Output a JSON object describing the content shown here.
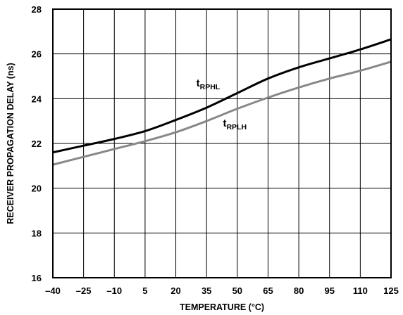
{
  "chart_data": {
    "type": "line",
    "title": "",
    "xlabel": "TEMPERATURE (°C)",
    "ylabel": "RECEIVER PROPAGATION DELAY (ns)",
    "xlim": [
      -40,
      125
    ],
    "ylim": [
      16,
      28
    ],
    "x_ticks": [
      -40,
      -25,
      -10,
      5,
      20,
      35,
      50,
      65,
      80,
      95,
      110,
      125
    ],
    "x_tick_labels": [
      "–40",
      "–25",
      "–10",
      "5",
      "20",
      "35",
      "50",
      "65",
      "80",
      "95",
      "110",
      "125"
    ],
    "y_ticks": [
      16,
      18,
      20,
      22,
      24,
      26,
      28
    ],
    "y_tick_labels": [
      "16",
      "18",
      "20",
      "22",
      "24",
      "26",
      "28"
    ],
    "grid": true,
    "legend": "inline labels",
    "series": [
      {
        "name_main": "t",
        "name_sub": "RPHL",
        "color": "#000000",
        "x": [
          -40,
          -25,
          -10,
          5,
          20,
          35,
          50,
          65,
          80,
          95,
          110,
          125
        ],
        "y": [
          21.6,
          21.9,
          22.2,
          22.55,
          23.05,
          23.6,
          24.25,
          24.9,
          25.4,
          25.8,
          26.2,
          26.65
        ]
      },
      {
        "name_main": "t",
        "name_sub": "RPLH",
        "color": "#888888",
        "x": [
          -40,
          -25,
          -10,
          5,
          20,
          35,
          50,
          65,
          80,
          95,
          110,
          125
        ],
        "y": [
          21.05,
          21.4,
          21.75,
          22.1,
          22.5,
          23.0,
          23.55,
          24.05,
          24.5,
          24.9,
          25.25,
          25.65
        ]
      }
    ]
  }
}
